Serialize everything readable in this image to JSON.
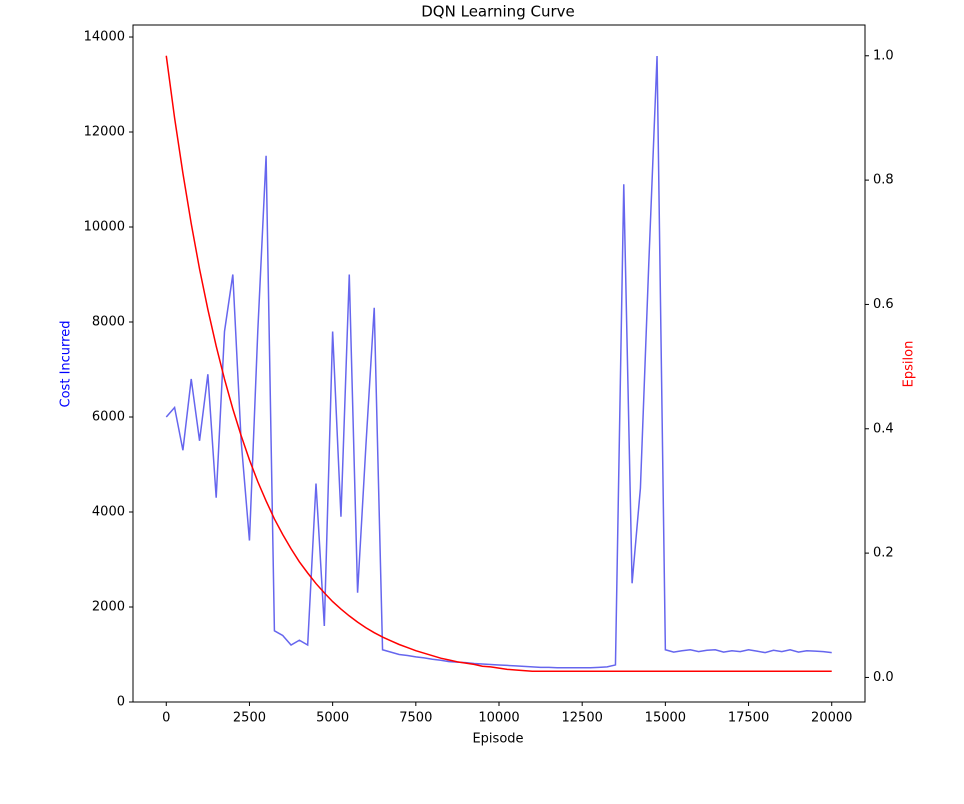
{
  "chart_data": {
    "type": "line",
    "title": "DQN Learning Curve",
    "xlabel": "Episode",
    "ylabel": "Cost Incurred",
    "y2label": "Epsilon",
    "x": [
      0,
      250,
      500,
      750,
      1000,
      1250,
      1500,
      1750,
      2000,
      2250,
      2500,
      2750,
      3000,
      3250,
      3500,
      3750,
      4000,
      4250,
      4500,
      4750,
      5000,
      5250,
      5500,
      5750,
      6000,
      6250,
      6500,
      6750,
      7000,
      7250,
      7500,
      7750,
      8000,
      8250,
      8500,
      8750,
      9000,
      9250,
      9500,
      9750,
      10000,
      10250,
      10500,
      10750,
      11000,
      11250,
      11500,
      11750,
      12000,
      12250,
      12500,
      12750,
      13000,
      13250,
      13500,
      13750,
      14000,
      14250,
      14500,
      14750,
      15000,
      15250,
      15500,
      15750,
      16000,
      16250,
      16500,
      16750,
      17000,
      17250,
      17500,
      17750,
      18000,
      18250,
      18500,
      18750,
      19000,
      19250,
      19500,
      19750,
      20000
    ],
    "series": [
      {
        "name": "Cost Incurred",
        "color": "#6666ee",
        "axis": "y",
        "values": [
          6000,
          6200,
          5300,
          6800,
          5500,
          6900,
          4300,
          7800,
          9000,
          5500,
          3400,
          7800,
          11500,
          1500,
          1400,
          1200,
          1300,
          1200,
          4600,
          1600,
          7800,
          3900,
          9000,
          2300,
          5400,
          8300,
          1100,
          1050,
          1000,
          980,
          950,
          930,
          900,
          880,
          850,
          840,
          830,
          810,
          800,
          790,
          780,
          770,
          760,
          750,
          740,
          730,
          730,
          720,
          720,
          720,
          720,
          720,
          730,
          740,
          780,
          10900,
          2500,
          4500,
          9200,
          13600,
          1100,
          1050,
          1080,
          1100,
          1060,
          1090,
          1100,
          1050,
          1080,
          1060,
          1100,
          1070,
          1040,
          1090,
          1060,
          1100,
          1050,
          1080,
          1070,
          1060,
          1040
        ]
      },
      {
        "name": "Epsilon",
        "color": "#ff0000",
        "axis": "y2",
        "values": [
          1.0,
          0.9,
          0.811,
          0.73,
          0.657,
          0.592,
          0.533,
          0.48,
          0.432,
          0.389,
          0.35,
          0.315,
          0.284,
          0.255,
          0.23,
          0.207,
          0.186,
          0.168,
          0.151,
          0.136,
          0.122,
          0.11,
          0.099,
          0.089,
          0.08,
          0.072,
          0.065,
          0.059,
          0.053,
          0.048,
          0.043,
          0.039,
          0.035,
          0.031,
          0.028,
          0.025,
          0.023,
          0.021,
          0.018,
          0.017,
          0.015,
          0.013,
          0.012,
          0.011,
          0.01,
          0.01,
          0.01,
          0.01,
          0.01,
          0.01,
          0.01,
          0.01,
          0.01,
          0.01,
          0.01,
          0.01,
          0.01,
          0.01,
          0.01,
          0.01,
          0.01,
          0.01,
          0.01,
          0.01,
          0.01,
          0.01,
          0.01,
          0.01,
          0.01,
          0.01,
          0.01,
          0.01,
          0.01,
          0.01,
          0.01,
          0.01,
          0.01,
          0.01,
          0.01,
          0.01,
          0.01
        ]
      }
    ],
    "xlim": [
      -1000,
      21000
    ],
    "xticks": [
      0,
      2500,
      5000,
      7500,
      10000,
      12500,
      15000,
      17500,
      20000
    ],
    "ylim": [
      0,
      14253
    ],
    "yticks": [
      0,
      2000,
      4000,
      6000,
      8000,
      10000,
      12000,
      14000
    ],
    "y2lim": [
      -0.0395,
      1.0495
    ],
    "y2ticks": [
      {
        "value": 0,
        "label": "0.0"
      },
      0.2,
      0.4,
      0.6,
      0.8,
      {
        "value": 1,
        "label": "1.0"
      }
    ],
    "grid": false
  }
}
